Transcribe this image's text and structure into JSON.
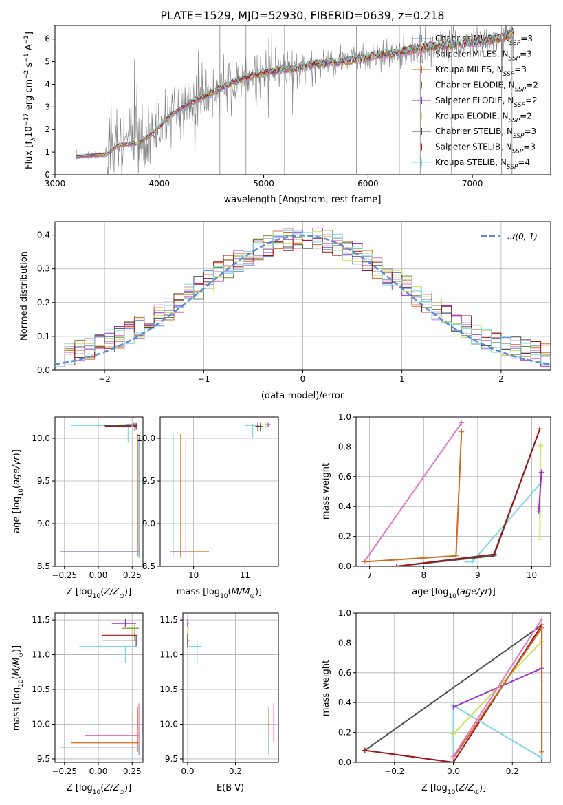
{
  "figure": {
    "title": "PLATE=1529, MJD=52930, FIBERID=0639, z=0.218"
  },
  "colors": {
    "Chabrier MILES": "#6b8fd6",
    "Salpeter MILES": "#e377c2",
    "Kroupa MILES": "#d2691e",
    "Chabrier ELODIE": "#6e8b3d",
    "Salpeter ELODIE": "#9932cc",
    "Kroupa ELODIE": "#c8e25a",
    "Chabrier STELIB": "#4d4d4d",
    "Salpeter STELIB": "#a01818",
    "Kroupa STELIB": "#7fd8e0",
    "data": "#808080",
    "normal": "#5b8bd6"
  },
  "chart_data": [
    {
      "id": "spectrum",
      "type": "line",
      "title": "PLATE=1529, MJD=52930, FIBERID=0639, z=0.218",
      "xlabel": "wavelength [Angstrom, rest frame]",
      "ylabel": "Flux [f_λ 10^-17 erg cm^-2 s^-1 A^-1]",
      "xlim": [
        3000,
        7750
      ],
      "ylim": [
        0,
        6.6
      ],
      "xticks": [
        "3000",
        "4000",
        "5000",
        "6000",
        "7000"
      ],
      "yticks": [
        "0",
        "1",
        "2",
        "3",
        "4",
        "5",
        "6"
      ],
      "legend_position": "top-right",
      "continuum": [
        [
          3200,
          0.8
        ],
        [
          3500,
          0.9
        ],
        [
          3600,
          1.3
        ],
        [
          3800,
          1.4
        ],
        [
          3900,
          1.7
        ],
        [
          4000,
          2.1
        ],
        [
          4100,
          2.6
        ],
        [
          4200,
          2.9
        ],
        [
          4300,
          3.2
        ],
        [
          4500,
          3.6
        ],
        [
          4700,
          4.1
        ],
        [
          4900,
          4.4
        ],
        [
          5100,
          4.6
        ],
        [
          5300,
          4.7
        ],
        [
          5500,
          4.9
        ],
        [
          5700,
          5.0
        ],
        [
          5900,
          5.1
        ],
        [
          6100,
          5.3
        ],
        [
          6300,
          5.4
        ],
        [
          6500,
          5.6
        ],
        [
          6700,
          5.7
        ],
        [
          6900,
          5.8
        ],
        [
          7100,
          5.9
        ],
        [
          7300,
          6.1
        ],
        [
          7400,
          6.3
        ]
      ],
      "series": [
        {
          "name": "Chabrier MILES",
          "label": "N",
          "sub": "SSP",
          "value": "=3"
        },
        {
          "name": "Salpeter MILES",
          "label": "N",
          "sub": "SSP",
          "value": "=3"
        },
        {
          "name": "Kroupa MILES",
          "label": "N",
          "sub": "SSP",
          "value": "=3"
        },
        {
          "name": "Chabrier ELODIE",
          "label": "N",
          "sub": "SSP",
          "value": "=2"
        },
        {
          "name": "Salpeter ELODIE",
          "label": "N",
          "sub": "SSP",
          "value": "=2"
        },
        {
          "name": "Kroupa ELODIE",
          "label": "N",
          "sub": "SSP",
          "value": "=2"
        },
        {
          "name": "Chabrier STELIB",
          "label": "N",
          "sub": "SSP",
          "value": "=3"
        },
        {
          "name": "Salpeter STELIB",
          "label": "N",
          "sub": "SSP",
          "value": "=3"
        },
        {
          "name": "Kroupa STELIB",
          "label": "N",
          "sub": "SSP",
          "value": "=4"
        }
      ]
    },
    {
      "id": "residuals",
      "type": "bar",
      "xlabel": "(data-model)/error",
      "ylabel": "Normed distribution",
      "xlim": [
        -2.5,
        2.5
      ],
      "ylim": [
        0,
        0.44
      ],
      "xticks": [
        "−2",
        "−1",
        "0",
        "1",
        "2"
      ],
      "yticks": [
        "0.0",
        "0.1",
        "0.2",
        "0.3",
        "0.4"
      ],
      "grid": true,
      "legend": "𝒩(0, 1)",
      "legend_position": "top-right",
      "bin_width": 0.1
    },
    {
      "id": "age_vs_Z",
      "type": "scatter",
      "xlabel": "Z [log10(Z/Z⊙)]",
      "ylabel": "age [log10(age/yr)]",
      "xlim": [
        -0.32,
        0.33
      ],
      "ylim": [
        8.5,
        10.25
      ],
      "xticks": [
        "−0.25",
        "0.00",
        "0.25"
      ],
      "yticks": [
        "8.5",
        "9.0",
        "9.5",
        "10.0"
      ],
      "grid": true
    },
    {
      "id": "age_vs_mass",
      "type": "scatter",
      "xlabel": "mass [log10(M/M⊙)]",
      "xlim": [
        9.35,
        11.65
      ],
      "ylim": [
        8.5,
        10.25
      ],
      "xticks": [
        "10",
        "11"
      ],
      "yticks": [
        "8.5",
        "9.0",
        "9.5",
        "10.0"
      ],
      "grid": true
    },
    {
      "id": "weight_vs_age",
      "type": "line",
      "xlabel": "age [log10(age/yr)]",
      "ylabel": "mass weight",
      "xlim": [
        6.75,
        10.35
      ],
      "ylim": [
        0,
        1
      ],
      "xticks": [
        "7",
        "8",
        "9",
        "10"
      ],
      "yticks": [
        "0.0",
        "0.2",
        "0.4",
        "0.6",
        "0.8",
        "1.0"
      ],
      "grid": true,
      "series": [
        {
          "name": "Salpeter MILES",
          "x": [
            6.9,
            8.7
          ],
          "y": [
            0.03,
            0.96
          ]
        },
        {
          "name": "Kroupa MILES",
          "x": [
            6.9,
            8.6,
            8.7
          ],
          "y": [
            0.03,
            0.07,
            0.9
          ]
        },
        {
          "name": "Kroupa STELIB",
          "x": [
            8.8,
            8.9,
            10.15
          ],
          "y": [
            0.03,
            0.03,
            0.55
          ]
        },
        {
          "name": "Chabrier STELIB",
          "x": [
            7.5,
            9.3,
            10.15
          ],
          "y": [
            0.0,
            0.07,
            0.92
          ]
        },
        {
          "name": "Salpeter STELIB",
          "x": [
            7.5,
            9.3,
            10.15
          ],
          "y": [
            0.0,
            0.08,
            0.92
          ]
        },
        {
          "name": "Kroupa ELODIE",
          "x": [
            10.15,
            10.16,
            10.17
          ],
          "y": [
            0.18,
            0.81,
            0.8
          ]
        },
        {
          "name": "Salpeter ELODIE",
          "x": [
            10.13,
            10.18
          ],
          "y": [
            0.37,
            0.63
          ]
        }
      ]
    },
    {
      "id": "mass_vs_Z",
      "type": "scatter",
      "xlabel": "Z [log10(Z/Z⊙)]",
      "ylabel": "mass [log10(M/M⊙)]",
      "xlim": [
        -0.32,
        0.33
      ],
      "ylim": [
        9.45,
        11.6
      ],
      "xticks": [
        "−0.25",
        "0.00",
        "0.25"
      ],
      "yticks": [
        "9.5",
        "10.0",
        "10.5",
        "11.0",
        "11.5"
      ],
      "grid": true
    },
    {
      "id": "mass_vs_EBV",
      "type": "scatter",
      "xlabel": "E(B-V)",
      "xlim": [
        -0.02,
        0.38
      ],
      "ylim": [
        9.45,
        11.6
      ],
      "xticks": [
        "0.0",
        "0.2"
      ],
      "yticks": [
        "9.5",
        "10.0",
        "10.5",
        "11.0",
        "11.5"
      ],
      "grid": true
    },
    {
      "id": "weight_vs_Z",
      "type": "line",
      "xlabel": "Z [log10(Z/Z⊙)]",
      "ylabel": "mass weight",
      "xlim": [
        -0.33,
        0.33
      ],
      "ylim": [
        0,
        1
      ],
      "xticks": [
        "−0.2",
        "0.0",
        "0.2"
      ],
      "yticks": [
        "0.0",
        "0.2",
        "0.4",
        "0.6",
        "0.8",
        "1.0"
      ],
      "grid": true,
      "series": [
        {
          "name": "Chabrier STELIB",
          "x": [
            -0.3,
            0.3,
            0.3
          ],
          "y": [
            0.08,
            0.92,
            0.0
          ]
        },
        {
          "name": "Salpeter STELIB",
          "x": [
            -0.3,
            0.0,
            0.3
          ],
          "y": [
            0.08,
            0.0,
            0.92
          ]
        },
        {
          "name": "Kroupa STELIB",
          "x": [
            0.0,
            0.0,
            0.3,
            0.3
          ],
          "y": [
            0.03,
            0.38,
            0.03,
            0.55
          ]
        },
        {
          "name": "Salpeter ELODIE",
          "x": [
            0.0,
            0.3
          ],
          "y": [
            0.37,
            0.63
          ]
        },
        {
          "name": "Kroupa ELODIE",
          "x": [
            0.0,
            0.3
          ],
          "y": [
            0.19,
            0.81
          ]
        },
        {
          "name": "Kroupa MILES",
          "x": [
            0.0,
            0.3,
            0.3
          ],
          "y": [
            0.03,
            0.9,
            0.07
          ]
        },
        {
          "name": "Salpeter MILES",
          "x": [
            0.0,
            0.3
          ],
          "y": [
            0.04,
            0.96
          ]
        }
      ]
    }
  ]
}
